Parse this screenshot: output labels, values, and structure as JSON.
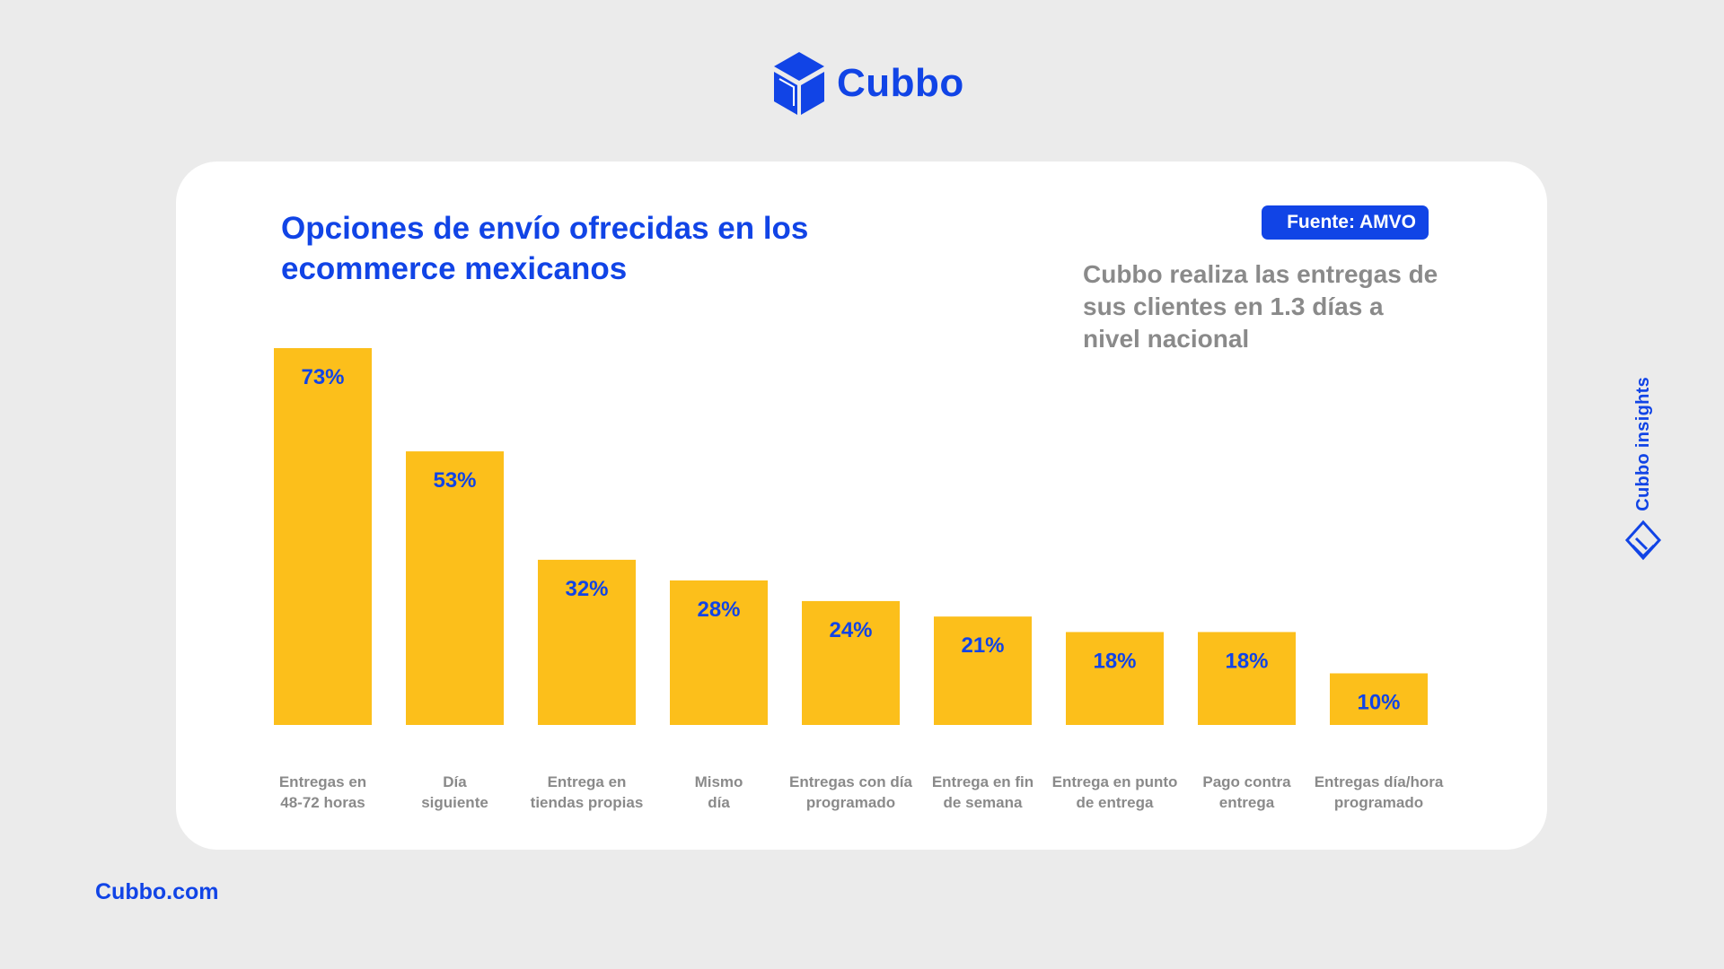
{
  "brand": {
    "name": "Cubbo",
    "icon": "cubbo-cube-icon"
  },
  "colors": {
    "accent": "#1144e6",
    "bar": "#fcbf1b",
    "label": "#8a8a8a",
    "background": "#ebebeb"
  },
  "card": {
    "source_badge": "Fuente: AMVO",
    "note": "Cubbo realiza las entregas de sus clientes en 1.3 días a nivel nacional"
  },
  "chart_data": {
    "type": "bar",
    "title": "Opciones de envío ofrecidas en los ecommerce mexicanos",
    "categories": [
      [
        "Entregas en",
        "48-72 horas"
      ],
      [
        "Día",
        "siguiente"
      ],
      [
        "Entrega en",
        "tiendas propias"
      ],
      [
        "Mismo",
        "día"
      ],
      [
        "Entregas con día",
        "programado"
      ],
      [
        "Entrega en fin",
        "de semana"
      ],
      [
        "Entrega en punto",
        "de entrega"
      ],
      [
        "Pago contra",
        "entrega"
      ],
      [
        "Entregas día/hora",
        "programado"
      ]
    ],
    "values": [
      73,
      53,
      32,
      28,
      24,
      21,
      18,
      18,
      10
    ],
    "value_labels": [
      "73%",
      "53%",
      "32%",
      "28%",
      "24%",
      "21%",
      "18%",
      "18%",
      "10%"
    ],
    "unit": "%",
    "grid": false,
    "legend": "none"
  },
  "side_label": {
    "text": "Cubbo insights",
    "icon": "cubbo-insights-icon"
  },
  "footer": {
    "site": "Cubbo.com"
  }
}
